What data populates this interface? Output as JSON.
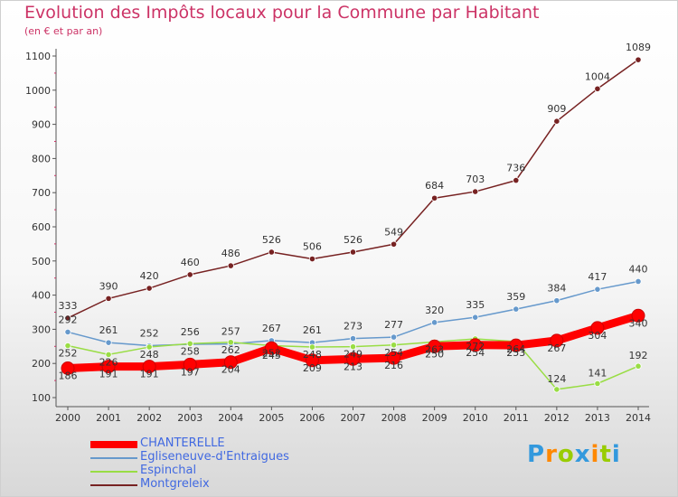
{
  "header": {
    "title": "Evolution des Impôts locaux pour la Commune par Habitant",
    "subtitle": "(en € et par an)"
  },
  "logo": {
    "text": "Proxiti"
  },
  "chart_data": {
    "type": "line",
    "title": "Evolution des Impôts locaux pour la Commune par Habitant",
    "subtitle": "(en € et par an)",
    "x": [
      "2000",
      "2001",
      "2002",
      "2003",
      "2004",
      "2005",
      "2006",
      "2007",
      "2008",
      "2009",
      "2010",
      "2011",
      "2012",
      "2013",
      "2014"
    ],
    "yticks": [
      100,
      200,
      300,
      400,
      500,
      600,
      700,
      800,
      900,
      1000,
      1100
    ],
    "ylim": [
      100,
      1100
    ],
    "grid": false,
    "legend_position": "bottom-left",
    "series": [
      {
        "name": "CHANTERELLE",
        "color": "#ff0000",
        "line_width": 9,
        "values": [
          186,
          191,
          191,
          197,
          204,
          245,
          209,
          213,
          216,
          250,
          254,
          253,
          267,
          304,
          340
        ]
      },
      {
        "name": "Egliseneuve-d'Entraigues",
        "color": "#6699cc",
        "line_width": 1.5,
        "values": [
          292,
          261,
          252,
          256,
          257,
          267,
          261,
          273,
          277,
          320,
          335,
          359,
          384,
          417,
          440
        ]
      },
      {
        "name": "Espinchal",
        "color": "#99dd44",
        "line_width": 1.5,
        "values": [
          252,
          226,
          248,
          258,
          262,
          252,
          248,
          249,
          254,
          263,
          272,
          264,
          124,
          141,
          192
        ]
      },
      {
        "name": "Montgreleix",
        "color": "#772222",
        "line_width": 1.5,
        "values": [
          333,
          390,
          420,
          460,
          486,
          526,
          506,
          526,
          549,
          684,
          703,
          736,
          909,
          1004,
          1089
        ]
      }
    ]
  }
}
